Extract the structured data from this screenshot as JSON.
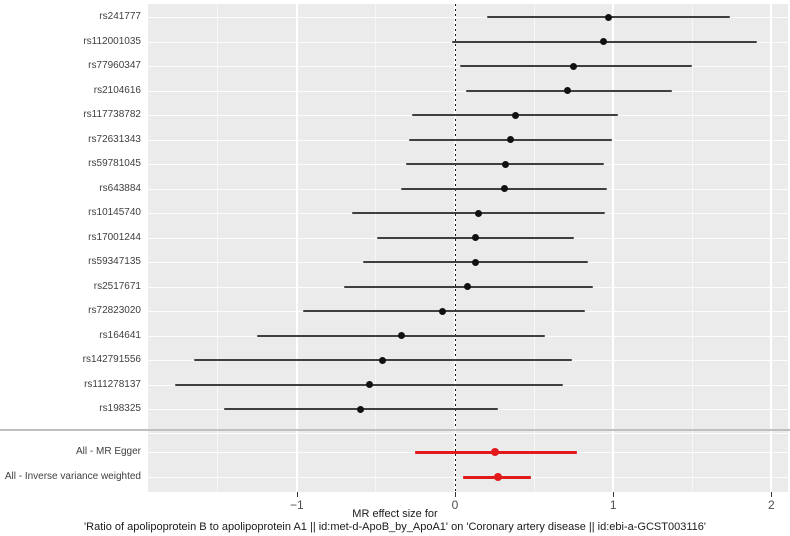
{
  "chart_data": {
    "type": "forest",
    "title": "",
    "xlabel_line1": "MR effect size for",
    "xlabel_line2": "'Ratio of apolipoprotein B to apolipoprotein A1 || id:met-d-ApoB_by_ApoA1' on 'Coronary artery disease || id:ebi-a-GCST003116'",
    "xlim": [
      -1.95,
      2.1
    ],
    "xticks": [
      -1,
      0,
      1,
      2
    ],
    "xtick_labels": [
      "−1",
      "0",
      "1",
      "2"
    ],
    "grid": "on",
    "zero_reference_line": 0,
    "snps": [
      {
        "label": "rs241777",
        "estimate": 0.97,
        "ci_low": 0.2,
        "ci_high": 1.74
      },
      {
        "label": "rs112001035",
        "estimate": 0.94,
        "ci_low": -0.02,
        "ci_high": 1.91
      },
      {
        "label": "rs77960347",
        "estimate": 0.75,
        "ci_low": 0.03,
        "ci_high": 1.5
      },
      {
        "label": "rs2104616",
        "estimate": 0.71,
        "ci_low": 0.07,
        "ci_high": 1.37
      },
      {
        "label": "rs117738782",
        "estimate": 0.38,
        "ci_low": -0.27,
        "ci_high": 1.03
      },
      {
        "label": "rs72631343",
        "estimate": 0.35,
        "ci_low": -0.29,
        "ci_high": 0.99
      },
      {
        "label": "rs59781045",
        "estimate": 0.32,
        "ci_low": -0.31,
        "ci_high": 0.94
      },
      {
        "label": "rs643884",
        "estimate": 0.31,
        "ci_low": -0.34,
        "ci_high": 0.96
      },
      {
        "label": "rs10145740",
        "estimate": 0.15,
        "ci_low": -0.65,
        "ci_high": 0.95
      },
      {
        "label": "rs17001244",
        "estimate": 0.13,
        "ci_low": -0.49,
        "ci_high": 0.75
      },
      {
        "label": "rs59347135",
        "estimate": 0.13,
        "ci_low": -0.58,
        "ci_high": 0.84
      },
      {
        "label": "rs2517671",
        "estimate": 0.08,
        "ci_low": -0.7,
        "ci_high": 0.87
      },
      {
        "label": "rs72823020",
        "estimate": -0.08,
        "ci_low": -0.96,
        "ci_high": 0.82
      },
      {
        "label": "rs164641",
        "estimate": -0.34,
        "ci_low": -1.25,
        "ci_high": 0.57
      },
      {
        "label": "rs142791556",
        "estimate": -0.46,
        "ci_low": -1.65,
        "ci_high": 0.74
      },
      {
        "label": "rs111278137",
        "estimate": -0.54,
        "ci_low": -1.77,
        "ci_high": 0.68
      },
      {
        "label": "rs198325",
        "estimate": -0.6,
        "ci_low": -1.46,
        "ci_high": 0.27
      }
    ],
    "summary": [
      {
        "label": "All - MR Egger",
        "estimate": 0.25,
        "ci_low": -0.25,
        "ci_high": 0.77
      },
      {
        "label": "All - Inverse variance weighted",
        "estimate": 0.27,
        "ci_low": 0.05,
        "ci_high": 0.48
      }
    ],
    "colors": {
      "snp_point": "#111111",
      "snp_ci": "#3f3f3f",
      "summary": "#e31a1c",
      "panel_background": "#ebebeb",
      "gridline": "#ffffff",
      "separator": "#bfbfbf"
    },
    "legend_position": "none"
  }
}
